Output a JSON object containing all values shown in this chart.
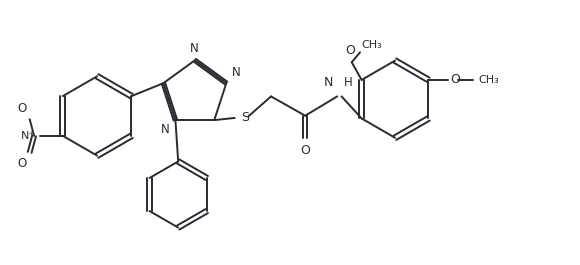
{
  "line_color": "#2a2a35",
  "bg_color": "#ffffff",
  "line_width": 1.4,
  "font_size": 8.5,
  "fig_width": 5.8,
  "fig_height": 2.65,
  "dpi": 100,
  "xlim": [
    0.0,
    10.5
  ],
  "ylim": [
    0.5,
    5.2
  ]
}
